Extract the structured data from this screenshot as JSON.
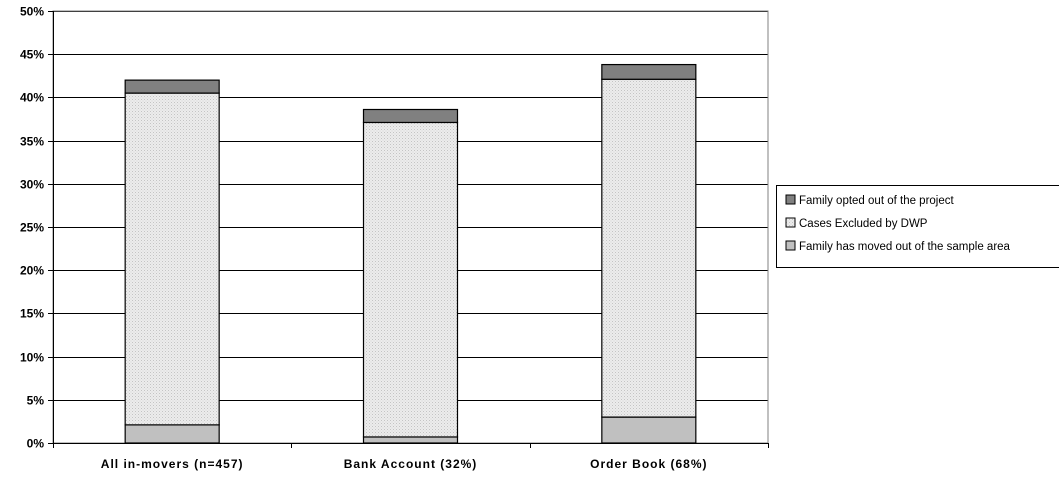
{
  "chart_data": {
    "type": "bar",
    "stacked": true,
    "title": "",
    "xlabel": "",
    "ylabel": "",
    "ylim": [
      0,
      50
    ],
    "y_ticks": [
      "0%",
      "5%",
      "10%",
      "15%",
      "20%",
      "25%",
      "30%",
      "35%",
      "40%",
      "45%",
      "50%"
    ],
    "grid": true,
    "legend_position": "right",
    "categories": [
      "All in-movers (n=457)",
      "Bank Account (32%)",
      "Order Book (68%)"
    ],
    "series": [
      {
        "name": "Family has moved out of the sample area",
        "values": [
          2.1,
          0.7,
          3.0
        ],
        "color": "#c0c0c0"
      },
      {
        "name": "Cases Excluded by DWP",
        "values": [
          38.4,
          36.4,
          39.1
        ],
        "color": "#e6e6e6"
      },
      {
        "name": "Family opted out of the project",
        "values": [
          1.5,
          1.5,
          1.7
        ],
        "color": "#808080"
      }
    ],
    "legend_order": [
      "Family opted out of the project",
      "Cases Excluded by DWP",
      "Family has moved out of the sample area"
    ]
  }
}
